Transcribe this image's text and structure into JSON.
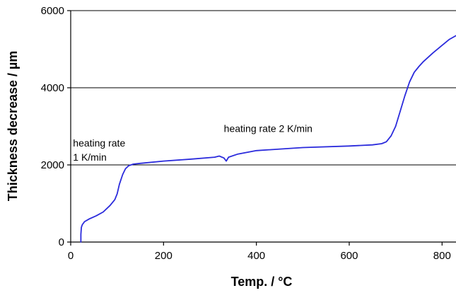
{
  "chart_data": {
    "type": "line",
    "title": "",
    "xlabel": "Temp. / °C",
    "ylabel": "Thickness decrease / µm",
    "xlim": [
      0,
      830
    ],
    "ylim": [
      0,
      6000
    ],
    "x_ticks": [
      0,
      200,
      400,
      600,
      800
    ],
    "y_ticks": [
      0,
      2000,
      4000,
      6000
    ],
    "x_tick_labels": [
      "0",
      "200",
      "400",
      "600",
      "800"
    ],
    "y_tick_labels": [
      "0",
      "2000",
      "4000",
      "6000"
    ],
    "grid": "horizontal",
    "legend": "none",
    "colors": {
      "series": "#2b2bdc",
      "grid": "#000000"
    },
    "annotations": [
      {
        "lines": [
          "heating rate",
          "1 K/min"
        ],
        "x": 5,
        "y": 2480
      },
      {
        "lines": [
          "heating rate 2 K/min"
        ],
        "x": 330,
        "y": 2850
      }
    ],
    "series": [
      {
        "x": [
          22,
          22,
          23,
          25,
          30,
          40,
          55,
          70,
          85,
          95,
          100,
          105,
          112,
          118,
          125,
          135,
          150,
          200,
          260,
          310,
          320,
          330,
          335,
          340,
          360,
          400,
          500,
          600,
          650,
          670,
          680,
          690,
          700,
          710,
          720,
          730,
          740,
          750,
          760,
          780,
          800,
          815,
          830
        ],
        "y": [
          0,
          200,
          380,
          450,
          530,
          600,
          680,
          780,
          950,
          1100,
          1250,
          1500,
          1750,
          1900,
          1980,
          2020,
          2040,
          2100,
          2150,
          2200,
          2230,
          2180,
          2100,
          2200,
          2280,
          2370,
          2450,
          2490,
          2520,
          2550,
          2600,
          2750,
          3000,
          3400,
          3800,
          4150,
          4400,
          4550,
          4680,
          4900,
          5100,
          5250,
          5350
        ]
      }
    ]
  }
}
